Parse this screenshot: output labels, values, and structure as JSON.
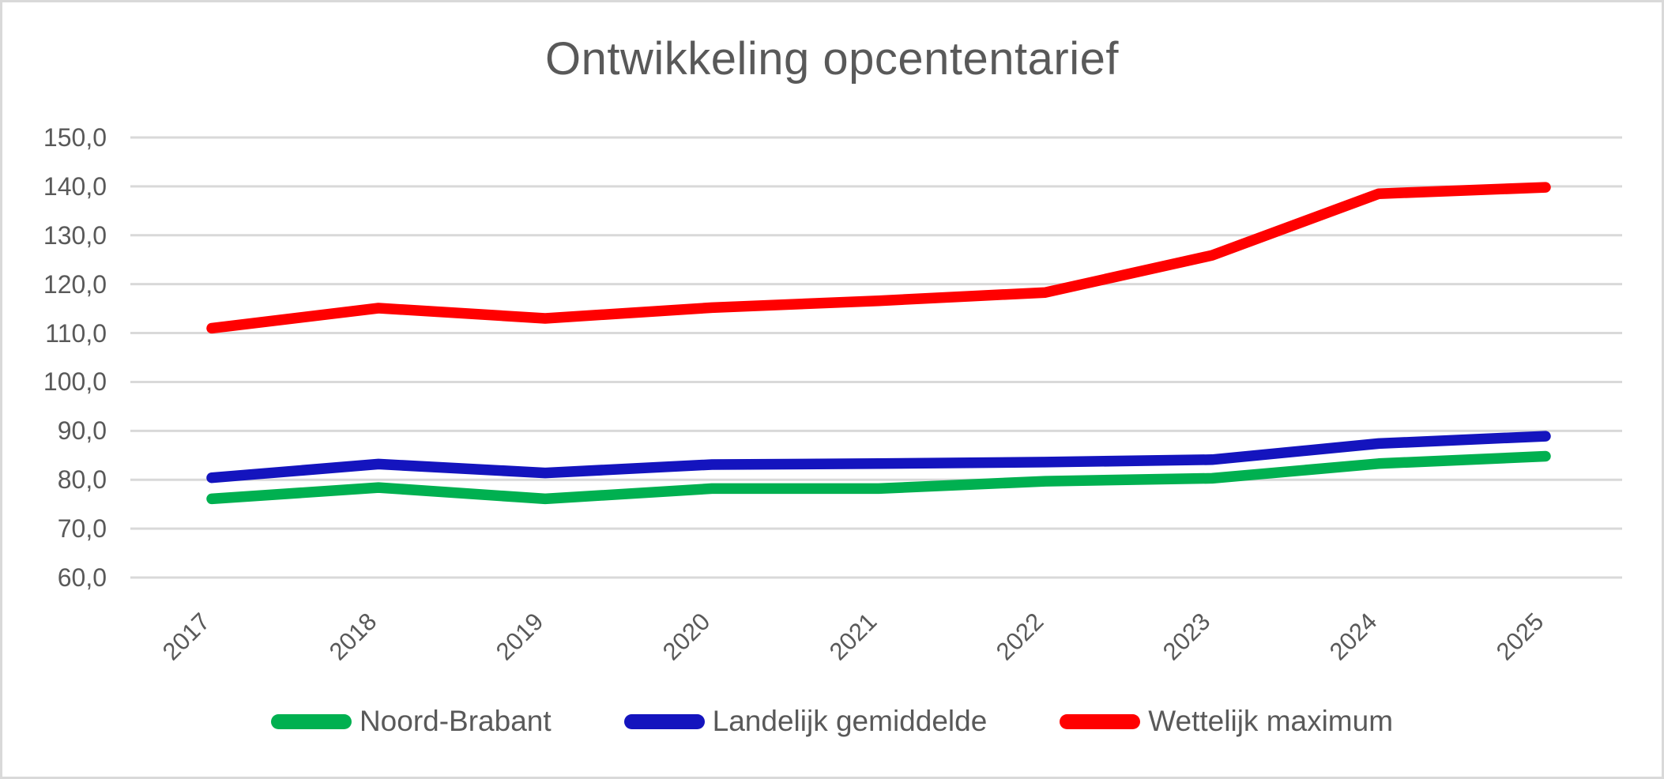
{
  "chart": {
    "title": "Ontwikkeling opcententarief"
  },
  "colors": {
    "text": "#595959",
    "gridline": "#D9D9D9",
    "border": "#D9D9D9",
    "background": "#FFFFFF",
    "series_green": "#00B050",
    "series_blue": "#1414BE",
    "series_red": "#FF0000"
  },
  "chart_data": {
    "type": "line",
    "title": "Ontwikkeling opcententarief",
    "categories": [
      "2017",
      "2018",
      "2019",
      "2020",
      "2021",
      "2022",
      "2023",
      "2024",
      "2025"
    ],
    "series": [
      {
        "name": "Noord-Brabant",
        "color": "#00B050",
        "values": [
          76.1,
          78.4,
          76.1,
          78.2,
          78.2,
          79.7,
          80.3,
          83.3,
          84.8
        ]
      },
      {
        "name": "Landelijk gemiddelde",
        "color": "#1414BE",
        "values": [
          80.4,
          83.2,
          81.4,
          83.1,
          83.3,
          83.6,
          84.1,
          87.4,
          88.9
        ]
      },
      {
        "name": "Wettelijk maximum",
        "color": "#FF0000",
        "values": [
          111.0,
          115.1,
          113.0,
          115.2,
          116.6,
          118.3,
          125.9,
          138.5,
          139.8
        ]
      }
    ],
    "xlabel": "",
    "ylabel": "",
    "ylim": [
      60,
      150
    ],
    "ytick_step": 10,
    "ytick_labels": [
      "150,0",
      "140,0",
      "130,0",
      "120,0",
      "110,0",
      "100,0",
      "90,0",
      "80,0",
      "70,0",
      "60,0"
    ],
    "decimal_separator": ",",
    "grid": true,
    "legend_position": "bottom",
    "x_labels_rotation_deg": 45
  }
}
